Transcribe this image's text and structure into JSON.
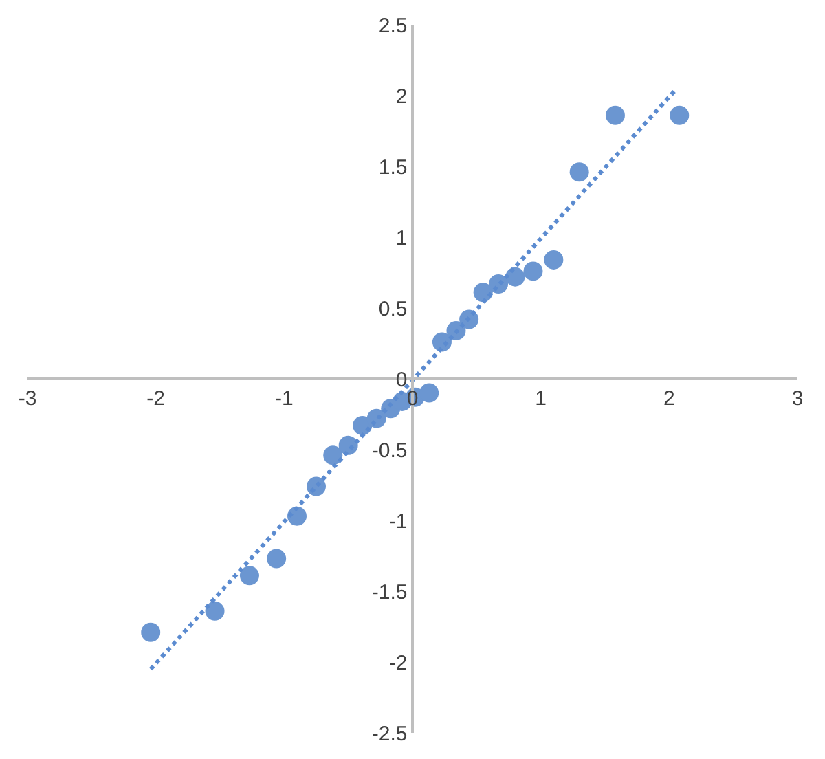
{
  "chart_data": {
    "type": "scatter",
    "series": [
      {
        "color": "#6b96d1",
        "marker": "circle",
        "x": [
          -2.04,
          -1.54,
          -1.27,
          -1.06,
          -0.9,
          -0.75,
          -0.62,
          -0.5,
          -0.39,
          -0.28,
          -0.17,
          -0.08,
          0.02,
          0.13,
          0.23,
          0.34,
          0.44,
          0.55,
          0.67,
          0.8,
          0.94,
          1.1,
          1.3,
          1.58,
          2.08
        ],
        "values": [
          -1.79,
          -1.64,
          -1.39,
          -1.27,
          -0.97,
          -0.76,
          -0.54,
          -0.47,
          -0.33,
          -0.28,
          -0.21,
          -0.16,
          -0.13,
          -0.1,
          0.26,
          0.34,
          0.42,
          0.61,
          0.67,
          0.72,
          0.76,
          0.84,
          1.46,
          1.86,
          1.86
        ]
      },
      {
        "type": "line",
        "color": "#5b8bd0",
        "line_style": "dotted",
        "x": [
          -2.04,
          2.04
        ],
        "values": [
          -2.05,
          2.03
        ]
      }
    ],
    "xlim": [
      -3,
      3
    ],
    "xticks": [
      -3,
      -2,
      -1,
      0,
      1,
      2,
      3
    ],
    "ylim": [
      -2.5,
      2.5
    ],
    "yticks": [
      -2.5,
      -2,
      -1.5,
      -1,
      -0.5,
      0,
      0.5,
      1,
      1.5,
      2,
      2.5
    ],
    "grid": false
  }
}
